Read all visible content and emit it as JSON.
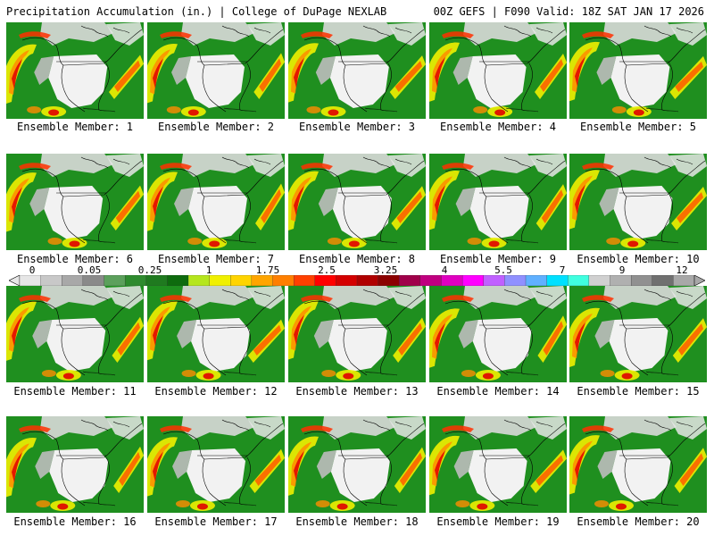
{
  "header": {
    "left": "Precipitation Accumulation (in.) | College of DuPage NEXLAB",
    "right": "00Z GEFS | F090 Valid: 18Z SAT JAN 17 2026"
  },
  "colorbar": {
    "tick_labels": [
      "0",
      "0.05",
      "0.25",
      "1",
      "1.75",
      "2.5",
      "3.25",
      "4",
      "5.5",
      "7",
      "9",
      "12"
    ],
    "colors": [
      "#e6e6e6",
      "#c8c8c8",
      "#a8a8a8",
      "#8a8a8a",
      "#5ca05c",
      "#2e8b2e",
      "#1f7a1f",
      "#0e6b0e",
      "#b5e61d",
      "#f0f000",
      "#ffd400",
      "#ffa500",
      "#ff7f00",
      "#ff4000",
      "#ff0000",
      "#d40000",
      "#b00000",
      "#8b0000",
      "#a0004a",
      "#c00080",
      "#e000c0",
      "#ff00ff",
      "#c060ff",
      "#9090ff",
      "#60b0ff",
      "#00e0ff",
      "#40ffe0",
      "#d0d0d0",
      "#b0b0b0",
      "#909090",
      "#707070",
      "#a8a8a8"
    ]
  },
  "members": [
    {
      "label": "Ensemble Member: 1"
    },
    {
      "label": "Ensemble Member: 2"
    },
    {
      "label": "Ensemble Member: 3"
    },
    {
      "label": "Ensemble Member: 4"
    },
    {
      "label": "Ensemble Member: 5"
    },
    {
      "label": "Ensemble Member: 6"
    },
    {
      "label": "Ensemble Member: 7"
    },
    {
      "label": "Ensemble Member: 8"
    },
    {
      "label": "Ensemble Member: 9"
    },
    {
      "label": "Ensemble Member: 10"
    },
    {
      "label": "Ensemble Member: 11"
    },
    {
      "label": "Ensemble Member: 12"
    },
    {
      "label": "Ensemble Member: 13"
    },
    {
      "label": "Ensemble Member: 14"
    },
    {
      "label": "Ensemble Member: 15"
    },
    {
      "label": "Ensemble Member: 16"
    },
    {
      "label": "Ensemble Member: 17"
    },
    {
      "label": "Ensemble Member: 18"
    },
    {
      "label": "Ensemble Member: 19"
    },
    {
      "label": "Ensemble Member: 20"
    }
  ]
}
